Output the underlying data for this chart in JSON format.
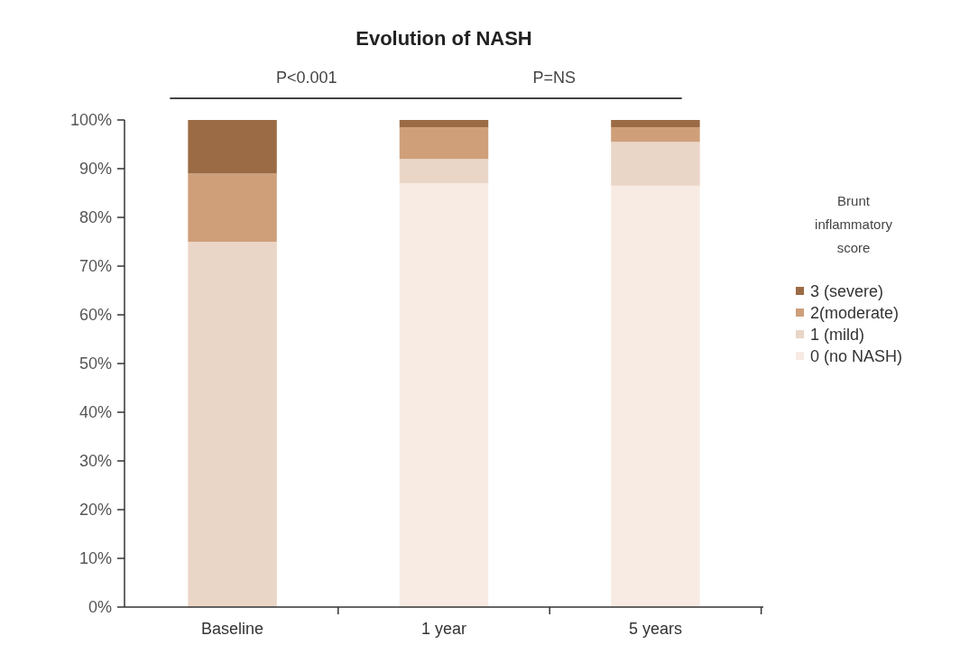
{
  "chart_data": {
    "type": "bar",
    "stacked": true,
    "title": "Evolution of NASH",
    "legend_title": "Brunt inflammatory score",
    "categories": [
      "Baseline",
      "1 year",
      "5 years"
    ],
    "series": [
      {
        "name": "0 (no NASH)",
        "color": "#f7ebe3",
        "values": [
          0,
          87,
          86.5
        ]
      },
      {
        "name": "1 (mild)",
        "color": "#ead6c7",
        "values": [
          75,
          5,
          9
        ]
      },
      {
        "name": "2(moderate)",
        "color": "#cf9f7a",
        "values": [
          14,
          6.5,
          3
        ]
      },
      {
        "name": "3 (severe)",
        "color": "#9b6b45",
        "values": [
          11,
          1.5,
          1.5
        ]
      }
    ],
    "ylim": [
      0,
      100
    ],
    "yticks": [
      {
        "value": 0,
        "label": "0%"
      },
      {
        "value": 10,
        "label": "10%"
      },
      {
        "value": 20,
        "label": "20%"
      },
      {
        "value": 30,
        "label": "30%"
      },
      {
        "value": 40,
        "label": "40%"
      },
      {
        "value": 50,
        "label": "50%"
      },
      {
        "value": 60,
        "label": "60%"
      },
      {
        "value": 70,
        "label": "70%"
      },
      {
        "value": 80,
        "label": "80%"
      },
      {
        "value": 90,
        "label": "90%"
      },
      {
        "value": 100,
        "label": "100%"
      }
    ],
    "grid": false,
    "legend": "right",
    "annotations": [
      "P<0.001",
      "P=NS"
    ]
  }
}
